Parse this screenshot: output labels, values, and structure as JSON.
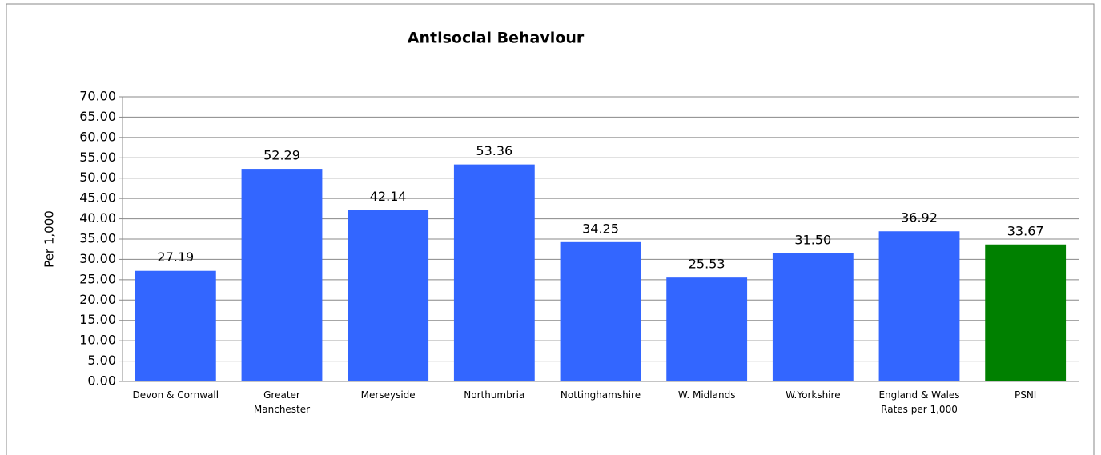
{
  "chart_data": {
    "type": "bar",
    "title": "Antisocial Behaviour",
    "y_label": "Per 1,000",
    "categories": [
      "Devon & Cornwall",
      "Greater\nManchester",
      "Merseyside",
      "Northumbria",
      "Nottinghamshire",
      "W. Midlands",
      "W.Yorkshire",
      "England & Wales\nRates per 1,000",
      "PSNI"
    ],
    "values": [
      27.19,
      52.29,
      42.14,
      53.36,
      34.25,
      25.53,
      31.5,
      36.92,
      33.67
    ],
    "value_labels": [
      "27.19",
      "52.29",
      "42.14",
      "53.36",
      "34.25",
      "25.53",
      "31.50",
      "36.92",
      "33.67"
    ],
    "colors": [
      "#3366ff",
      "#3366ff",
      "#3366ff",
      "#3366ff",
      "#3366ff",
      "#3366ff",
      "#3366ff",
      "#3366ff",
      "#008000"
    ],
    "ylim": [
      0,
      70
    ],
    "yticks": [
      {
        "value": 0,
        "label": "0.00"
      },
      {
        "value": 5,
        "label": "5.00"
      },
      {
        "value": 10,
        "label": "10.00"
      },
      {
        "value": 15,
        "label": "15.00"
      },
      {
        "value": 20,
        "label": "20.00"
      },
      {
        "value": 25,
        "label": "25.00"
      },
      {
        "value": 30,
        "label": "30.00"
      },
      {
        "value": 35,
        "label": "35.00"
      },
      {
        "value": 40,
        "label": "40.00"
      },
      {
        "value": 45,
        "label": "45.00"
      },
      {
        "value": 50,
        "label": "50.00"
      },
      {
        "value": 55,
        "label": "55.00"
      },
      {
        "value": 60,
        "label": "60.00"
      },
      {
        "value": 65,
        "label": "65.00"
      },
      {
        "value": 70,
        "label": "70.00"
      }
    ],
    "grid": true
  }
}
